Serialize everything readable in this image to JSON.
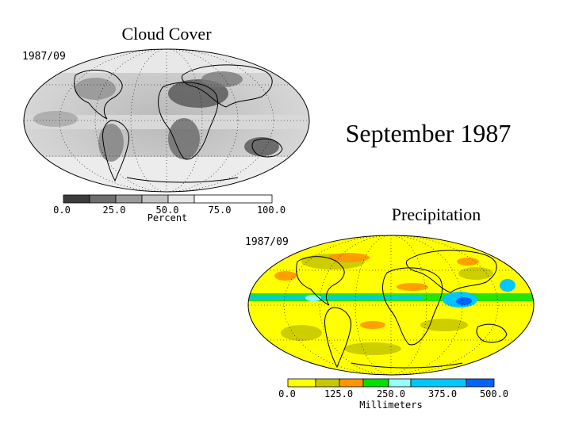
{
  "main_title": "September 1987",
  "cloud": {
    "title": "Cloud Cover",
    "date": "1987/09",
    "legend_ticks": [
      "0.0",
      "25.0",
      "50.0",
      "75.0",
      "100.0"
    ],
    "unit": "Percent",
    "colors": [
      "#3c3c3c",
      "#6e6e6e",
      "#9a9a9a",
      "#c4c4c4",
      "#e6e6e6",
      "#ffffff"
    ]
  },
  "precip": {
    "title": "Precipitation",
    "date": "1987/09",
    "legend_ticks": [
      "0.0",
      "125.0",
      "250.0",
      "375.0",
      "500.0"
    ],
    "unit": "Millimeters",
    "colors": [
      "#ffff00",
      "#c8c800",
      "#ff9600",
      "#00e100",
      "#96ffff",
      "#00c8ff",
      "#0064ff"
    ]
  }
}
